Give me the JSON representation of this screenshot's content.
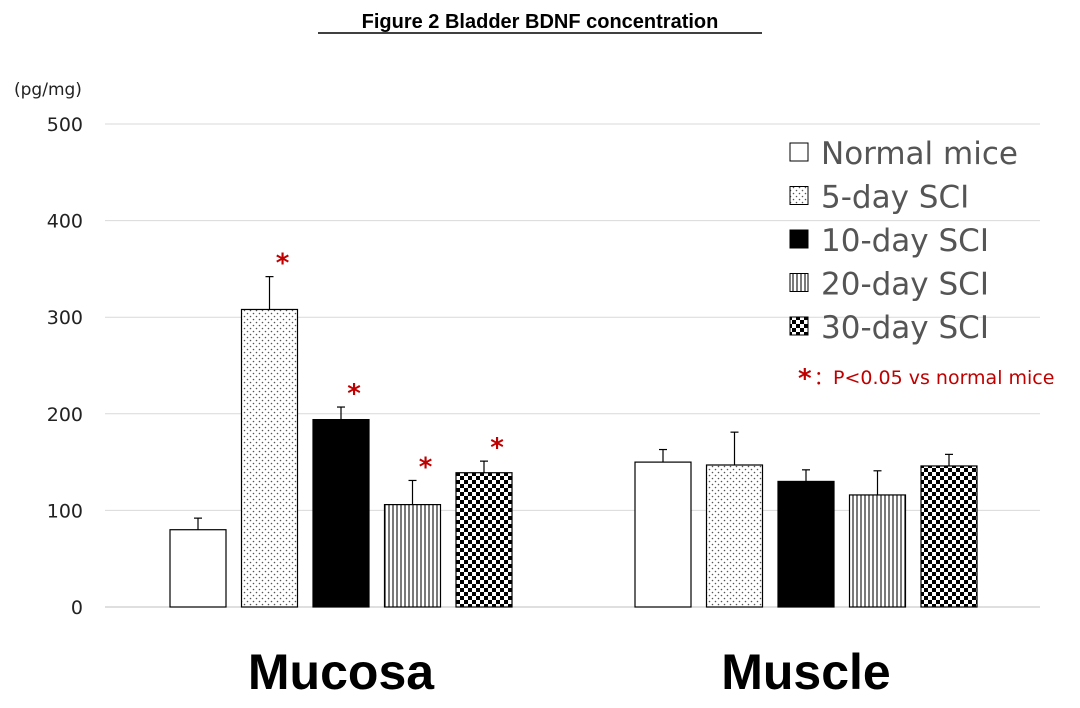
{
  "chart_data": {
    "type": "bar",
    "title": "Figure 2  Bladder BDNF concentration",
    "ylabel": "(pg/mg)",
    "xlabel": "",
    "ylim": [
      0,
      500
    ],
    "yticks": [
      0,
      100,
      200,
      300,
      400,
      500
    ],
    "grid": true,
    "legend_position": "top-right",
    "categories": [
      "Mucosa",
      "Muscle"
    ],
    "series": [
      {
        "name": "Normal mice",
        "pattern": "white",
        "values": [
          80,
          150
        ],
        "errors": [
          12,
          13
        ],
        "significant": [
          false,
          false
        ]
      },
      {
        "name": "5-day SCI",
        "pattern": "dots",
        "values": [
          308,
          147
        ],
        "errors": [
          34,
          34
        ],
        "significant": [
          true,
          false
        ]
      },
      {
        "name": "10-day SCI",
        "pattern": "black",
        "values": [
          194,
          130
        ],
        "errors": [
          13,
          12
        ],
        "significant": [
          true,
          false
        ]
      },
      {
        "name": "20-day SCI",
        "pattern": "vertical-lines",
        "values": [
          106,
          116
        ],
        "errors": [
          25,
          25
        ],
        "significant": [
          true,
          false
        ]
      },
      {
        "name": "30-day SCI",
        "pattern": "checker",
        "values": [
          139,
          146
        ],
        "errors": [
          12,
          12
        ],
        "significant": [
          true,
          false
        ]
      }
    ],
    "significance_symbol": "*",
    "significance_note": "：P<0.05 vs normal mice"
  },
  "colors": {
    "axis": "#bfbfbf",
    "grid": "#d9d9d9",
    "significance": "#c00000",
    "bar_edge": "#000000"
  }
}
